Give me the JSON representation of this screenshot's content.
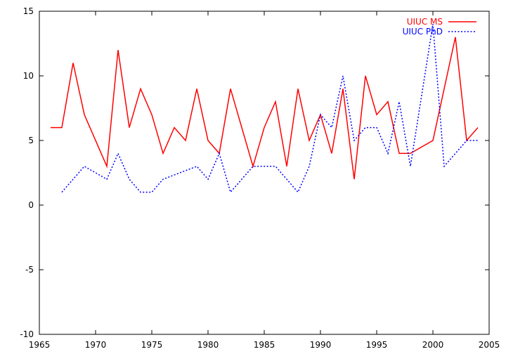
{
  "chart_data": {
    "type": "line",
    "title": "",
    "xlabel": "",
    "ylabel": "",
    "xlim": [
      1965,
      2005
    ],
    "ylim": [
      -10,
      15
    ],
    "xticks": [
      1965,
      1970,
      1975,
      1980,
      1985,
      1990,
      1995,
      2000,
      2005
    ],
    "yticks": [
      -10,
      -5,
      0,
      5,
      10,
      15
    ],
    "grid": false,
    "legend_position": "top-right",
    "series": [
      {
        "name": "UIUC MS",
        "color": "#ff0000",
        "style": "solid",
        "x": [
          1966,
          1967,
          1968,
          1969,
          1971,
          1972,
          1973,
          1974,
          1975,
          1976,
          1977,
          1978,
          1979,
          1980,
          1981,
          1982,
          1984,
          1985,
          1986,
          1987,
          1988,
          1989,
          1990,
          1991,
          1992,
          1993,
          1994,
          1995,
          1996,
          1997,
          1998,
          2000,
          2002,
          2003,
          2004
        ],
        "values": [
          6,
          6,
          11,
          7,
          3,
          12,
          6,
          9,
          7,
          4,
          6,
          5,
          9,
          5,
          4,
          9,
          3,
          6,
          8,
          3,
          9,
          5,
          7,
          4,
          9,
          2,
          10,
          7,
          8,
          4,
          4,
          5,
          13,
          5,
          6
        ]
      },
      {
        "name": "UIUC PhD",
        "color": "#0000ff",
        "style": "dotted",
        "x": [
          1967,
          1969,
          1971,
          1972,
          1973,
          1974,
          1975,
          1976,
          1979,
          1980,
          1981,
          1982,
          1984,
          1985,
          1986,
          1988,
          1989,
          1990,
          1991,
          1992,
          1993,
          1994,
          1995,
          1996,
          1997,
          1998,
          2000,
          2001,
          2003,
          2004
        ],
        "values": [
          1,
          3,
          2,
          4,
          2,
          1,
          1,
          2,
          3,
          2,
          4,
          1,
          3,
          3,
          3,
          1,
          3,
          7,
          6,
          10,
          5,
          6,
          6,
          4,
          8,
          3,
          14,
          3,
          5,
          5
        ]
      }
    ]
  }
}
